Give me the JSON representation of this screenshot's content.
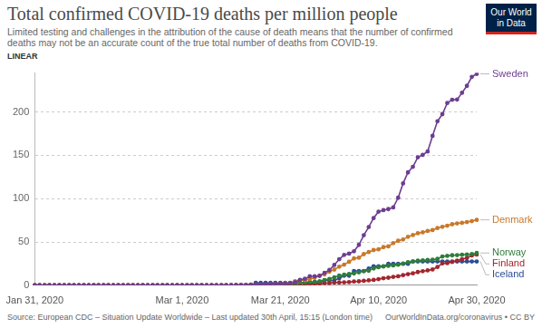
{
  "chart_data": {
    "type": "line",
    "title": "Total confirmed COVID-19 deaths per million people",
    "subtitle": "Limited testing and challenges in the attribution of the cause of death means that the number of confirmed deaths may not be an accurate count of the true total number of deaths from COVID-19.",
    "scale_label": "LINEAR",
    "logo": "Our World in Data",
    "source": "Source: European CDC – Situation Update Worldwide – Last updated 30th April, 15:15 (London time)",
    "credit": "OurWorldInData.org/coronavirus • CC BY",
    "categories": [
      "Jan 31, 2020",
      null,
      null,
      null,
      null,
      null,
      null,
      null,
      null,
      null,
      null,
      null,
      null,
      null,
      null,
      null,
      null,
      null,
      null,
      null,
      null,
      null,
      null,
      null,
      null,
      null,
      null,
      null,
      null,
      null,
      "Mar 1, 2020",
      null,
      null,
      null,
      null,
      null,
      null,
      null,
      null,
      null,
      null,
      null,
      null,
      null,
      null,
      null,
      null,
      null,
      null,
      null,
      "Mar 21, 2020",
      null,
      null,
      null,
      null,
      null,
      null,
      null,
      null,
      null,
      null,
      null,
      null,
      null,
      null,
      null,
      null,
      null,
      null,
      null,
      "Apr 10, 2020",
      null,
      null,
      null,
      null,
      null,
      null,
      null,
      null,
      null,
      null,
      null,
      null,
      null,
      null,
      null,
      null,
      null,
      null,
      null,
      "Apr 30, 2020"
    ],
    "series": [
      {
        "name": "Sweden",
        "color": "#6d3e91",
        "values": [
          0,
          0,
          0,
          0,
          0,
          0,
          0,
          0,
          0,
          0,
          0,
          0,
          0,
          0,
          0,
          0,
          0,
          0,
          0,
          0,
          0,
          0,
          0,
          0,
          0,
          0,
          0,
          0,
          0,
          0,
          0,
          0,
          0,
          0,
          0,
          0,
          0,
          0,
          0,
          0,
          0.1,
          0.1,
          0.1,
          0.2,
          0.3,
          0.6,
          0.7,
          1.0,
          1.1,
          1.6,
          2.0,
          2.1,
          2.4,
          3.5,
          6.1,
          7.5,
          10.3,
          10.3,
          10.8,
          14.3,
          17.6,
          23.4,
          30.1,
          35.0,
          36.5,
          39.2,
          46.6,
          57.8,
          67.2,
          77.5,
          85.0,
          86.7,
          87.9,
          89.8,
          101.0,
          117.6,
          130.3,
          136.8,
          147.7,
          150.5,
          154.4,
          172.5,
          189.3,
          197.5,
          210.4,
          214.2,
          214.4,
          222.2,
          230.2,
          240.6,
          244.0
        ]
      },
      {
        "name": "Denmark",
        "color": "#c8792b",
        "values": [
          0,
          0,
          0,
          0,
          0,
          0,
          0,
          0,
          0,
          0,
          0,
          0,
          0,
          0,
          0,
          0,
          0,
          0,
          0,
          0,
          0,
          0,
          0,
          0,
          0,
          0,
          0,
          0,
          0,
          0,
          0,
          0,
          0,
          0,
          0,
          0,
          0,
          0,
          0,
          0,
          0,
          0.2,
          0.2,
          0.3,
          0.7,
          0.7,
          0.7,
          0.7,
          1.0,
          1.4,
          1.6,
          2.3,
          2.6,
          4.7,
          5.9,
          5.9,
          7.2,
          8.6,
          11.2,
          12.6,
          15.7,
          18.1,
          21.4,
          23.8,
          27.1,
          30.9,
          31.8,
          35.9,
          38.3,
          40.6,
          41.4,
          44.0,
          44.9,
          48.6,
          51.3,
          52.8,
          55.9,
          57.9,
          60.0,
          61.1,
          62.6,
          63.7,
          66.0,
          67.5,
          68.8,
          70.4,
          71.4,
          72.0,
          72.9,
          74.0,
          75.5
        ]
      },
      {
        "name": "Norway",
        "color": "#2f7d3a",
        "values": [
          0,
          0,
          0,
          0,
          0,
          0,
          0,
          0,
          0,
          0,
          0,
          0,
          0,
          0,
          0,
          0,
          0,
          0,
          0,
          0,
          0,
          0,
          0,
          0,
          0,
          0,
          0,
          0,
          0,
          0,
          0,
          0,
          0,
          0,
          0,
          0,
          0,
          0,
          0,
          0,
          0,
          0,
          0.2,
          0.2,
          0.6,
          0.6,
          0.6,
          0.7,
          0.9,
          1.3,
          1.3,
          1.3,
          1.9,
          2.4,
          2.8,
          3.2,
          3.7,
          4.1,
          4.7,
          6.0,
          7.3,
          9.1,
          11.1,
          12.1,
          13.0,
          13.6,
          14.9,
          16.2,
          16.8,
          19.4,
          20.8,
          21.7,
          22.4,
          22.9,
          23.7,
          25.0,
          26.6,
          27.4,
          28.3,
          28.7,
          29.1,
          29.4,
          30.4,
          33.2,
          33.9,
          34.6,
          34.8,
          35.2,
          35.4,
          36.1,
          37.2
        ]
      },
      {
        "name": "Finland",
        "color": "#a3262e",
        "values": [
          0,
          0,
          0,
          0,
          0,
          0,
          0,
          0,
          0,
          0,
          0,
          0,
          0,
          0,
          0,
          0,
          0,
          0,
          0,
          0,
          0,
          0,
          0,
          0,
          0,
          0,
          0,
          0,
          0,
          0,
          0,
          0,
          0,
          0,
          0,
          0,
          0,
          0,
          0,
          0,
          0,
          0,
          0,
          0,
          0,
          0,
          0,
          0,
          0,
          0,
          0.2,
          0.2,
          0.2,
          0.2,
          0.5,
          0.9,
          1.3,
          1.3,
          1.8,
          2.4,
          2.4,
          3.1,
          3.2,
          3.4,
          3.6,
          4.3,
          4.5,
          5.1,
          5.6,
          6.1,
          7.0,
          8.1,
          8.7,
          9.6,
          10.3,
          11.6,
          12.8,
          13.7,
          15.2,
          16.2,
          17.1,
          18.2,
          21.1,
          25.2,
          25.5,
          26.9,
          28.5,
          30.0,
          31.4,
          34.4,
          35.4
        ]
      },
      {
        "name": "Iceland",
        "color": "#2d4d96",
        "values": [
          0,
          0,
          0,
          0,
          0,
          0,
          0,
          0,
          0,
          0,
          0,
          0,
          0,
          0,
          0,
          0,
          0,
          0,
          0,
          0,
          0,
          0,
          0,
          0,
          0,
          0,
          0,
          0,
          0,
          0,
          0,
          0,
          0,
          0,
          0,
          0,
          0,
          0,
          0,
          0,
          0,
          0,
          0,
          0,
          0,
          2.7,
          2.7,
          2.7,
          2.7,
          2.7,
          2.7,
          2.7,
          2.7,
          2.7,
          2.7,
          2.7,
          2.7,
          2.7,
          2.7,
          5.5,
          5.5,
          5.5,
          8.2,
          11.0,
          11.0,
          16.5,
          16.5,
          16.5,
          19.2,
          21.9,
          21.9,
          21.9,
          24.7,
          24.7,
          24.7,
          24.7,
          24.7,
          27.4,
          27.4,
          27.4,
          27.4,
          27.4,
          27.4,
          27.4,
          27.4,
          27.4,
          27.4,
          27.4,
          27.4,
          27.4,
          27.4
        ]
      }
    ],
    "ylim": [
      0,
      245
    ],
    "yticks": [
      0,
      50,
      100,
      150,
      200
    ],
    "grid": true,
    "marker": "circle"
  }
}
